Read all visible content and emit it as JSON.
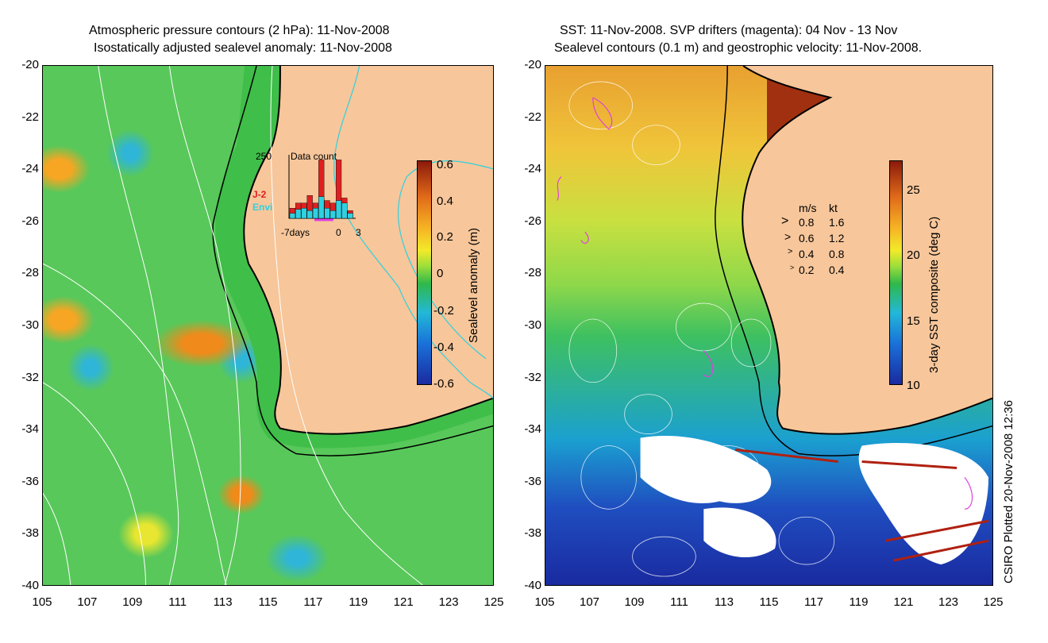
{
  "left_panel": {
    "title_line1": "Atmospheric pressure contours (2 hPa): 11-Nov-2008",
    "title_line2": "Isostatically adjusted sealevel anomaly: 11-Nov-2008",
    "colorbar": {
      "label": "Sealevel anomaly (m)",
      "ticks": [
        "0.6",
        "0.4",
        "0.2",
        "0",
        "-0.2",
        "-0.4",
        "-0.6"
      ]
    },
    "inset": {
      "count_label": "250",
      "title": "Data count",
      "series": [
        {
          "name": "J-2",
          "color": "#e02020"
        },
        {
          "name": "Envi",
          "color": "#30d0e0"
        }
      ],
      "x_start": "-7days",
      "x_zero": "0",
      "x_end": "3",
      "j2_values": [
        40,
        60,
        60,
        90,
        60,
        230,
        70,
        60,
        230,
        80,
        30
      ],
      "envi_values": [
        20,
        35,
        40,
        30,
        40,
        85,
        40,
        30,
        70,
        60,
        20
      ]
    }
  },
  "right_panel": {
    "title_line1": "SST: 11-Nov-2008. SVP drifters (magenta): 04 Nov - 13 Nov",
    "title_line2": "Sealevel contours (0.1 m) and geostrophic velocity: 11-Nov-2008.",
    "colorbar": {
      "label": "3-day SST composite (deg C)",
      "ticks": [
        "25",
        "20",
        "15",
        "10"
      ]
    },
    "velocity_legend": {
      "header_ms": "m/s",
      "header_kt": "kt",
      "rows": [
        {
          "ms": "0.8",
          "kt": "1.6"
        },
        {
          "ms": "0.6",
          "kt": "1.2"
        },
        {
          "ms": "0.4",
          "kt": "0.8"
        },
        {
          "ms": "0.2",
          "kt": "0.4"
        }
      ]
    }
  },
  "axes": {
    "y_ticks": [
      "-20",
      "-22",
      "-24",
      "-26",
      "-28",
      "-30",
      "-32",
      "-34",
      "-36",
      "-38",
      "-40"
    ],
    "x_ticks": [
      "105",
      "107",
      "109",
      "111",
      "113",
      "115",
      "117",
      "119",
      "121",
      "123",
      "125"
    ]
  },
  "credit": "CSIRO Plotted 20-Nov-2008 12:36",
  "colors": {
    "land": "#f7c69a",
    "coast": "#000000",
    "contour": "#ffffff",
    "drifter": "#e040e0"
  }
}
